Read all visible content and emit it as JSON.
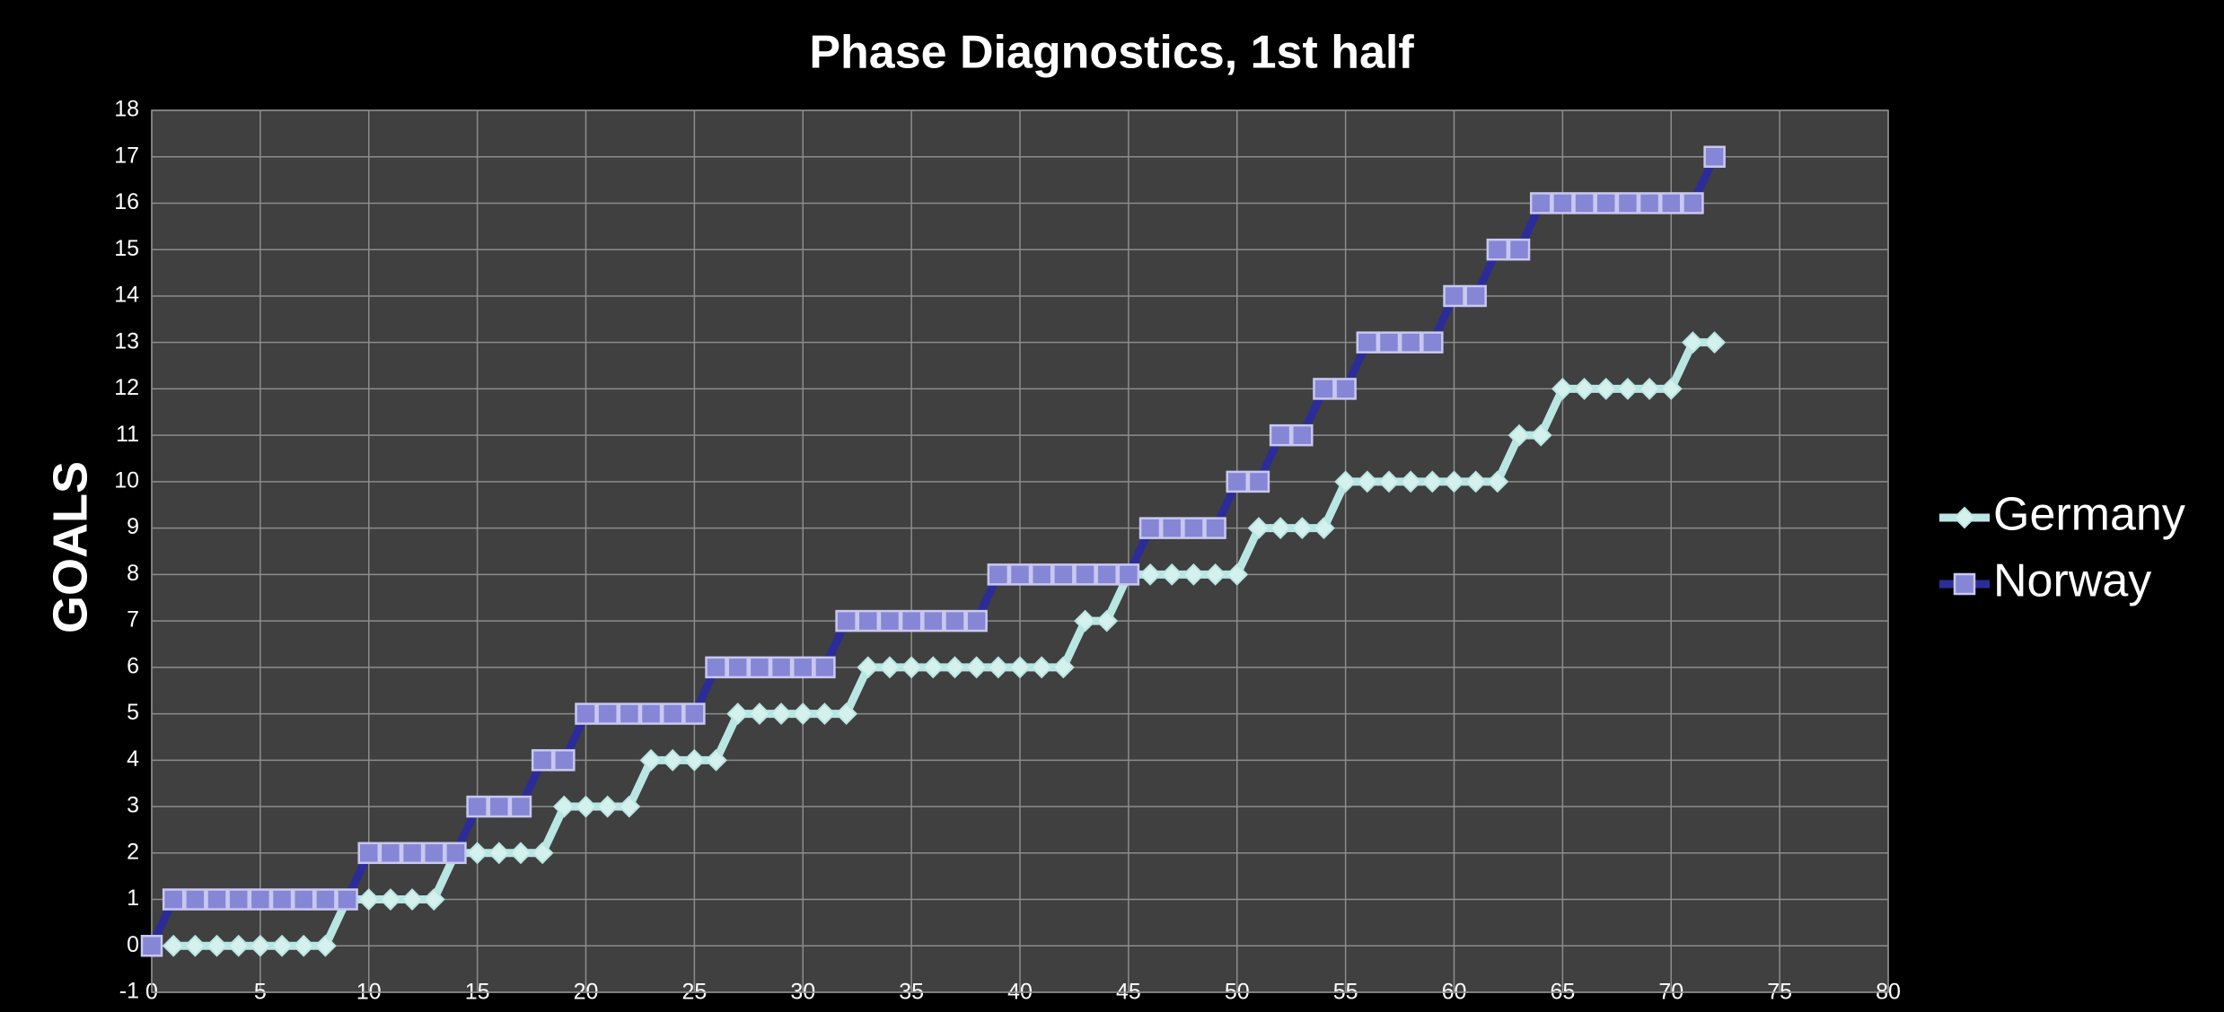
{
  "chart_data": {
    "type": "line",
    "title": "Phase Diagnostics, 1st half",
    "y_label": "GOALS",
    "x": [
      0,
      1,
      2,
      3,
      4,
      5,
      6,
      7,
      8,
      9,
      10,
      11,
      12,
      13,
      14,
      15,
      16,
      17,
      18,
      19,
      20,
      21,
      22,
      23,
      24,
      25,
      26,
      27,
      28,
      29,
      30,
      31,
      32,
      33,
      34,
      35,
      36,
      37,
      38,
      39,
      40,
      41,
      42,
      43,
      44,
      45,
      46,
      47,
      48,
      49,
      50,
      51,
      52,
      53,
      54,
      55,
      56,
      57,
      58,
      59,
      60,
      61,
      62,
      63,
      64,
      65,
      66,
      67,
      68,
      69,
      70,
      71,
      72
    ],
    "series": [
      {
        "name": "Germany",
        "color": "#b9e6e2",
        "marker": "diamond",
        "values": [
          null,
          0,
          0,
          0,
          0,
          0,
          0,
          0,
          0,
          1,
          1,
          1,
          1,
          1,
          2,
          2,
          2,
          2,
          2,
          3,
          3,
          3,
          3,
          4,
          4,
          4,
          4,
          5,
          5,
          5,
          5,
          5,
          5,
          6,
          6,
          6,
          6,
          6,
          6,
          6,
          6,
          6,
          6,
          7,
          7,
          8,
          8,
          8,
          8,
          8,
          8,
          9,
          9,
          9,
          9,
          10,
          10,
          10,
          10,
          10,
          10,
          10,
          10,
          11,
          11,
          12,
          12,
          12,
          12,
          12,
          12,
          13,
          13
        ]
      },
      {
        "name": "Norway",
        "color": "#2c2c98",
        "marker": "square",
        "values": [
          0,
          1,
          1,
          1,
          1,
          1,
          1,
          1,
          1,
          1,
          2,
          2,
          2,
          2,
          2,
          3,
          3,
          3,
          4,
          4,
          5,
          5,
          5,
          5,
          5,
          5,
          6,
          6,
          6,
          6,
          6,
          6,
          7,
          7,
          7,
          7,
          7,
          7,
          7,
          8,
          8,
          8,
          8,
          8,
          8,
          8,
          9,
          9,
          9,
          9,
          10,
          10,
          11,
          11,
          12,
          12,
          13,
          13,
          13,
          13,
          14,
          14,
          15,
          15,
          16,
          16,
          16,
          16,
          16,
          16,
          16,
          16,
          17
        ]
      }
    ],
    "xlim": [
      0,
      80
    ],
    "xticks": [
      0,
      5,
      10,
      15,
      20,
      25,
      30,
      35,
      40,
      45,
      50,
      55,
      60,
      65,
      70,
      75,
      80
    ],
    "ylim": [
      -1,
      18
    ],
    "yticks": [
      -1,
      0,
      1,
      2,
      3,
      4,
      5,
      6,
      7,
      8,
      9,
      10,
      11,
      12,
      13,
      14,
      15,
      16,
      17,
      18
    ],
    "grid": true,
    "legend": "right"
  }
}
